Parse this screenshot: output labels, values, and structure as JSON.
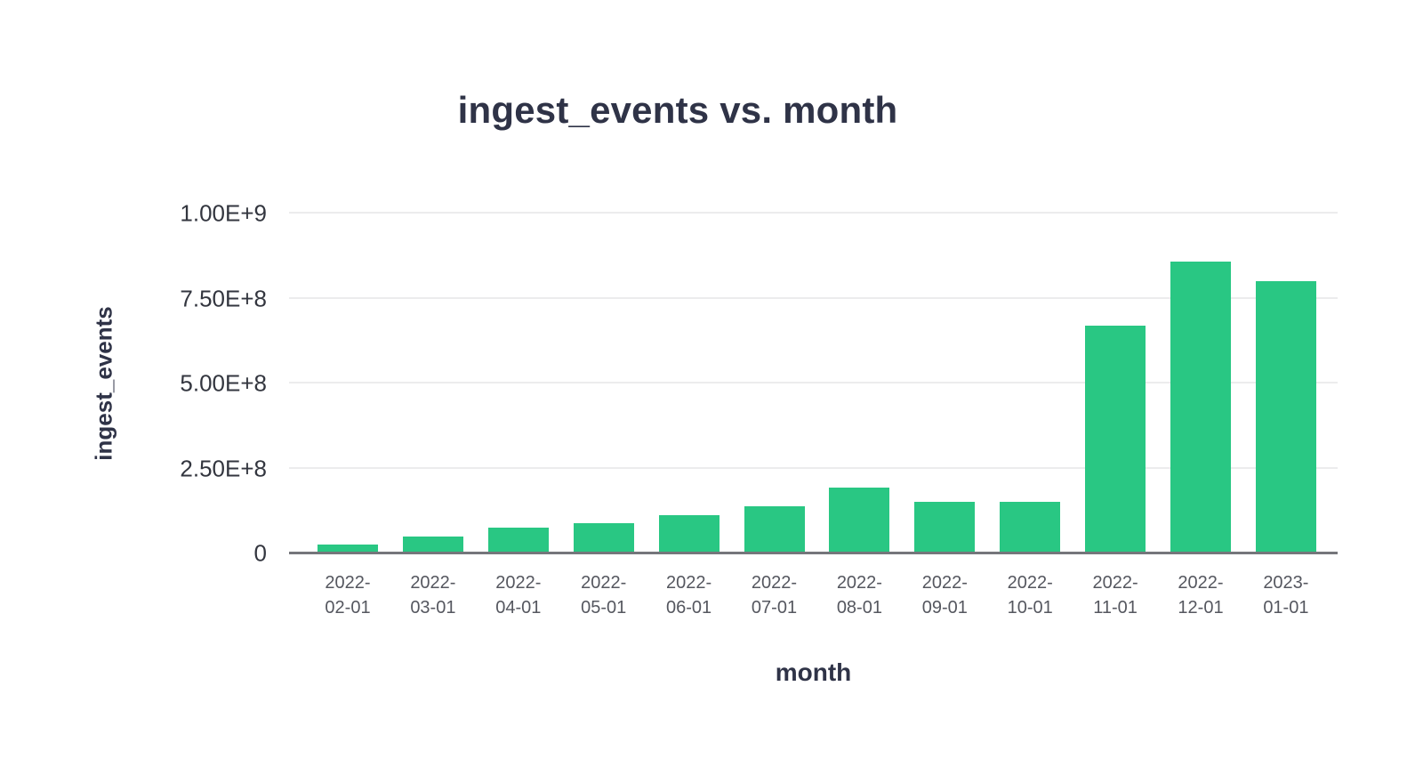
{
  "chart_data": {
    "type": "bar",
    "title": "ingest_events vs. month",
    "xlabel": "month",
    "ylabel": "ingest_events",
    "categories": [
      "2022-02-01",
      "2022-03-01",
      "2022-04-01",
      "2022-05-01",
      "2022-06-01",
      "2022-07-01",
      "2022-08-01",
      "2022-09-01",
      "2022-10-01",
      "2022-11-01",
      "2022-12-01",
      "2023-01-01"
    ],
    "values": [
      26000000,
      50000000,
      76000000,
      88000000,
      113000000,
      138000000,
      193000000,
      153000000,
      153000000,
      670000000,
      858000000,
      802000000
    ],
    "ylim": [
      0,
      1000000000
    ],
    "yticks": [
      {
        "value": 0,
        "label": "0"
      },
      {
        "value": 250000000,
        "label": "2.50E+8"
      },
      {
        "value": 500000000,
        "label": "5.00E+8"
      },
      {
        "value": 750000000,
        "label": "7.50E+8"
      },
      {
        "value": 1000000000,
        "label": "1.00E+9"
      }
    ],
    "grid": true,
    "legend": false,
    "bar_color": "#29C783",
    "grid_color": "#ECECED",
    "axis_color": "#75767B",
    "title_color": "#2F3347",
    "ytick_color": "#33363F",
    "xtick_color": "#55575F"
  }
}
